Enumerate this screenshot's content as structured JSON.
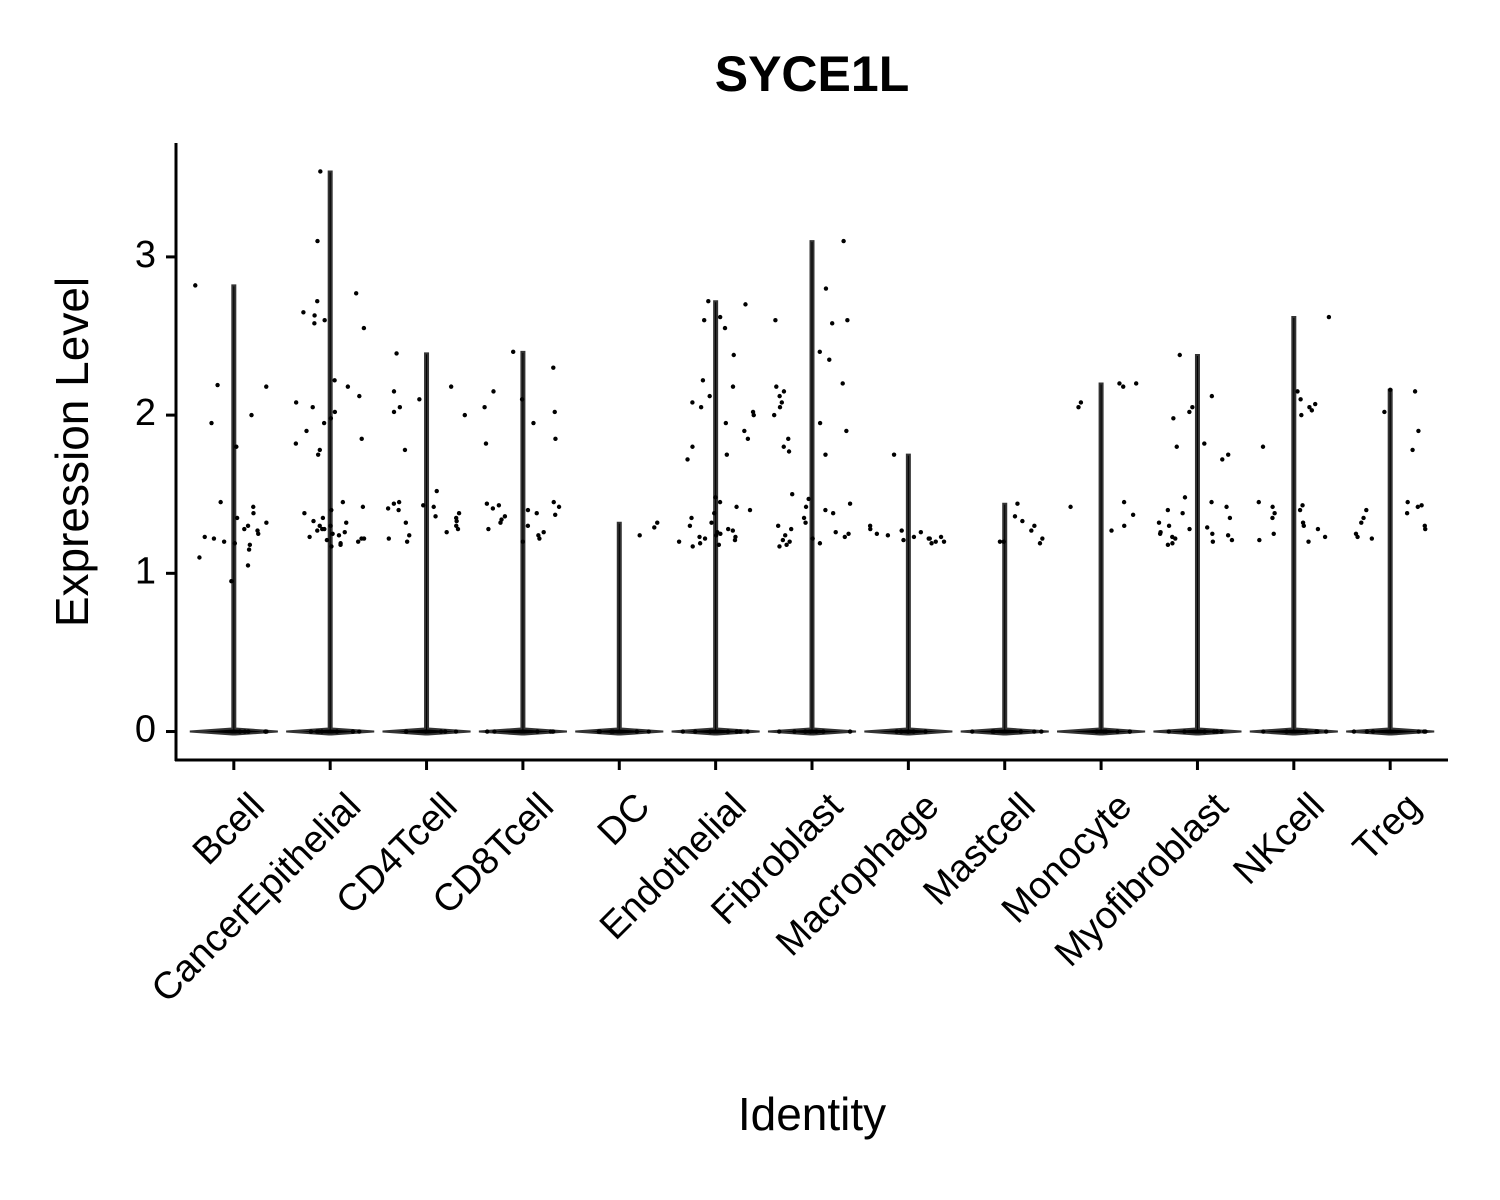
{
  "chart_data": {
    "type": "violin",
    "title": "SYCE1L",
    "x_label": "Identity",
    "y_label": "Expression Level",
    "categories": [
      "Bcell",
      "CancerEpithelial",
      "CD4Tcell",
      "CD8Tcell",
      "DC",
      "Endothelial",
      "Fibroblast",
      "Macrophage",
      "Mastcell",
      "Monocyte",
      "Myofibroblast",
      "NKcell",
      "Treg"
    ],
    "max": [
      2.82,
      3.54,
      2.39,
      2.4,
      1.32,
      2.72,
      3.1,
      1.75,
      1.44,
      2.2,
      2.38,
      2.62,
      2.16
    ],
    "points": [
      [
        2.82,
        2.18,
        2.19,
        1.95,
        2.0,
        1.8,
        1.45,
        1.42,
        1.38,
        1.35,
        1.3,
        1.28,
        1.25,
        1.22,
        1.2,
        1.18,
        1.15,
        1.1,
        1.05,
        0.95,
        1.32,
        1.27,
        1.23,
        1.19,
        0,
        0,
        0,
        0,
        0,
        0
      ],
      [
        3.54,
        3.1,
        2.77,
        2.72,
        2.65,
        2.63,
        2.6,
        2.58,
        2.55,
        2.22,
        2.18,
        2.12,
        2.08,
        2.05,
        2.02,
        1.98,
        1.95,
        1.9,
        1.85,
        1.82,
        1.78,
        1.75,
        1.45,
        1.42,
        1.4,
        1.38,
        1.35,
        1.33,
        1.3,
        1.28,
        1.27,
        1.25,
        1.24,
        1.23,
        1.22,
        1.21,
        1.2,
        1.19,
        1.18,
        1.17,
        1.3,
        1.26,
        1.22,
        1.28,
        1.32,
        0,
        0,
        0,
        0,
        0,
        0,
        0
      ],
      [
        2.39,
        2.18,
        2.15,
        2.1,
        2.05,
        2.02,
        2.0,
        1.78,
        1.52,
        1.45,
        1.43,
        1.42,
        1.4,
        1.38,
        1.35,
        1.33,
        1.3,
        1.28,
        1.26,
        1.24,
        1.22,
        1.2,
        1.44,
        1.41,
        1.36,
        1.32,
        0,
        0,
        0,
        0,
        0,
        0
      ],
      [
        2.4,
        2.3,
        2.15,
        2.1,
        2.05,
        2.02,
        1.95,
        1.85,
        1.82,
        1.45,
        1.43,
        1.42,
        1.4,
        1.38,
        1.36,
        1.34,
        1.32,
        1.3,
        1.28,
        1.26,
        1.24,
        1.22,
        1.2,
        1.44,
        1.41,
        1.37,
        0,
        0,
        0,
        0,
        0,
        0
      ],
      [
        1.32,
        1.29,
        1.24,
        0,
        0,
        0,
        0,
        0,
        0
      ],
      [
        2.72,
        2.7,
        2.62,
        2.6,
        2.55,
        2.38,
        2.22,
        2.18,
        2.12,
        2.08,
        2.05,
        2.02,
        2.0,
        1.95,
        1.9,
        1.85,
        1.8,
        1.75,
        1.72,
        1.48,
        1.45,
        1.42,
        1.4,
        1.38,
        1.35,
        1.32,
        1.3,
        1.28,
        1.26,
        1.25,
        1.24,
        1.23,
        1.22,
        1.21,
        1.2,
        1.19,
        1.18,
        1.17,
        1.27,
        1.23,
        0,
        0,
        0,
        0,
        0,
        0,
        0
      ],
      [
        3.1,
        2.8,
        2.6,
        2.6,
        2.58,
        2.4,
        2.35,
        2.2,
        2.18,
        2.15,
        2.12,
        2.08,
        2.05,
        2.0,
        1.95,
        1.9,
        1.85,
        1.8,
        1.77,
        1.75,
        1.5,
        1.47,
        1.44,
        1.42,
        1.4,
        1.38,
        1.35,
        1.32,
        1.3,
        1.28,
        1.26,
        1.25,
        1.24,
        1.23,
        1.22,
        1.21,
        1.2,
        1.19,
        1.18,
        1.17,
        0,
        0,
        0,
        0,
        0,
        0,
        0
      ],
      [
        1.75,
        1.3,
        1.28,
        1.27,
        1.25,
        1.24,
        1.23,
        1.22,
        1.22,
        1.21,
        1.2,
        1.2,
        1.19,
        1.26,
        1.23,
        0,
        0,
        0,
        0,
        0,
        0
      ],
      [
        1.44,
        1.36,
        1.33,
        1.3,
        1.27,
        1.22,
        1.2,
        1.2,
        1.19,
        0,
        0,
        0,
        0,
        0,
        0
      ],
      [
        2.2,
        2.2,
        2.18,
        2.05,
        2.08,
        1.45,
        1.42,
        1.37,
        1.3,
        1.27,
        0,
        0,
        0,
        0,
        0,
        0
      ],
      [
        2.38,
        2.12,
        2.05,
        2.02,
        1.98,
        1.82,
        1.8,
        1.75,
        1.72,
        1.48,
        1.45,
        1.42,
        1.4,
        1.38,
        1.35,
        1.32,
        1.3,
        1.28,
        1.26,
        1.25,
        1.24,
        1.23,
        1.22,
        1.21,
        1.2,
        1.19,
        1.18,
        1.29,
        1.25,
        0,
        0,
        0,
        0,
        0,
        0
      ],
      [
        2.62,
        2.15,
        2.1,
        2.07,
        2.05,
        2.03,
        2.0,
        1.8,
        1.45,
        1.43,
        1.42,
        1.4,
        1.38,
        1.35,
        1.32,
        1.3,
        1.28,
        1.25,
        1.23,
        1.21,
        1.2,
        0,
        0,
        0,
        0,
        0,
        0
      ],
      [
        2.16,
        2.15,
        2.02,
        1.9,
        1.78,
        1.45,
        1.43,
        1.42,
        1.4,
        1.38,
        1.35,
        1.32,
        1.3,
        1.28,
        1.25,
        1.23,
        1.22,
        0,
        0,
        0,
        0,
        0,
        0
      ]
    ],
    "ylim": [
      -0.18,
      3.72
    ],
    "yticks": [
      0,
      1,
      2,
      3
    ],
    "color": "#000000"
  }
}
